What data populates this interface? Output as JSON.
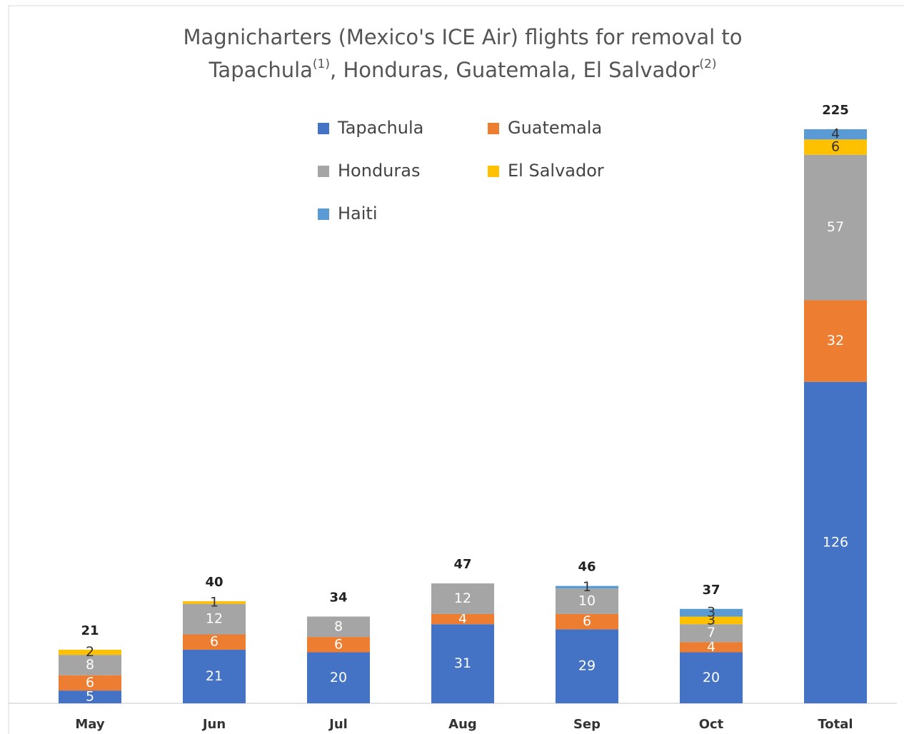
{
  "chart_data": {
    "type": "stacked_bar",
    "title_parts": [
      "Magnicharters (Mexico's ICE Air) flights for removal to",
      "Tapachula",
      "(1)",
      ", Honduras, Guatemala, El Salvador",
      "(2)"
    ],
    "categories": [
      "May",
      "Jun",
      "Jul",
      "Aug",
      "Sep",
      "Oct",
      "Total"
    ],
    "series": [
      {
        "name": "Tapachula",
        "color": "#4472c4",
        "values": [
          5,
          21,
          20,
          31,
          29,
          20,
          126
        ]
      },
      {
        "name": "Guatemala",
        "color": "#ed7d31",
        "values": [
          6,
          6,
          6,
          4,
          6,
          4,
          32
        ]
      },
      {
        "name": "Honduras",
        "color": "#a5a5a5",
        "values": [
          8,
          12,
          8,
          12,
          10,
          7,
          57
        ]
      },
      {
        "name": "El Salvador",
        "color": "#ffc000",
        "values": [
          2,
          1,
          null,
          null,
          null,
          3,
          6
        ]
      },
      {
        "name": "Haiti",
        "color": "#5b9bd5",
        "values": [
          null,
          null,
          null,
          null,
          1,
          3,
          4
        ]
      }
    ],
    "totals": [
      21,
      40,
      34,
      47,
      46,
      37,
      225
    ],
    "ylim": [
      0,
      225
    ]
  }
}
